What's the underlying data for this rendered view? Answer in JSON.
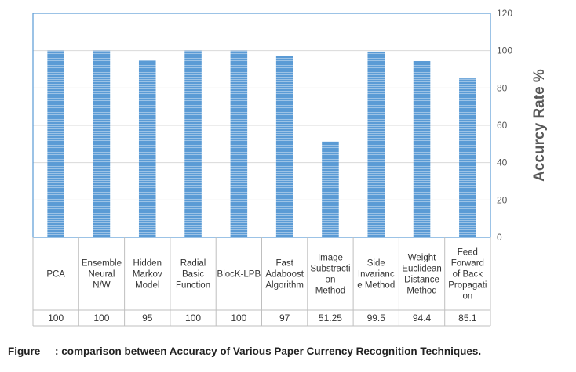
{
  "chart_data": {
    "type": "bar",
    "ylabel": "Accurcy Rate %",
    "ylim": [
      0,
      120
    ],
    "yticks": [
      0,
      20,
      40,
      60,
      80,
      100,
      120
    ],
    "y_axis_side": "right",
    "grid": true,
    "legend": "none",
    "categories": [
      [
        "PCA"
      ],
      [
        "Ensemble",
        "Neural",
        "N/W"
      ],
      [
        "Hidden",
        "Markov",
        "Model"
      ],
      [
        "Radial",
        "Basic",
        "Function"
      ],
      [
        "BlocK-LPB"
      ],
      [
        "Fast",
        "Adaboost",
        "Algorithm"
      ],
      [
        "Image",
        "Substracti",
        "on",
        "Method"
      ],
      [
        "Side",
        "Invarianc",
        "e Method"
      ],
      [
        "Weight",
        "Euclidean",
        "Distance",
        "Method"
      ],
      [
        "Feed",
        "Forward",
        "of Back",
        "Propagati",
        "on"
      ]
    ],
    "values": [
      100,
      100,
      95,
      100,
      100,
      97,
      51.25,
      99.5,
      94.4,
      85.1
    ],
    "value_labels": [
      "100",
      "100",
      "95",
      "100",
      "100",
      "97",
      "51.25",
      "99.5",
      "94.4",
      "85.1"
    ],
    "bar_color": "#9DC3E6",
    "bar_stripe_color": "#5B9BD5",
    "frame_color": "#5B9BD5"
  },
  "caption": "Figure     : comparison between Accuracy of Various Paper Currency Recognition Techniques."
}
